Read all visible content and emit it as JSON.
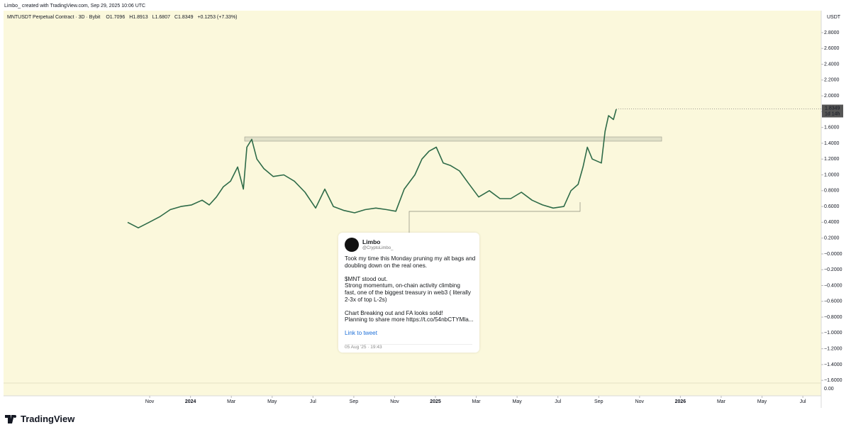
{
  "header": {
    "credit": "Limbo_ created with TradingView.com, Sep 29, 2025 10:06 UTC"
  },
  "chart_data": {
    "type": "line",
    "title": "MNTUSDT Perpetual Contract · 3D · Bybit",
    "ohlc": [
      "O1.7096",
      "H1.8913",
      "L1.6807",
      "C1.8349",
      "+0.1253 (+7.33%)"
    ],
    "y_axis_unit": "USDT",
    "last_price": 1.8349,
    "countdown": "1d 14h",
    "volume_pane_label": "0.00",
    "xlim": [
      2.84,
      42.9
    ],
    "ylim": [
      -1.634,
      3.078
    ],
    "xticks": [
      {
        "value": 10,
        "label": "Nov"
      },
      {
        "value": 12,
        "label": "2024"
      },
      {
        "value": 14,
        "label": "Mar"
      },
      {
        "value": 16,
        "label": "May"
      },
      {
        "value": 18,
        "label": "Jul"
      },
      {
        "value": 20,
        "label": "Sep"
      },
      {
        "value": 22,
        "label": "Nov"
      },
      {
        "value": 24,
        "label": "2025"
      },
      {
        "value": 26,
        "label": "Mar"
      },
      {
        "value": 28,
        "label": "May"
      },
      {
        "value": 30,
        "label": "Jul"
      },
      {
        "value": 32,
        "label": "Sep"
      },
      {
        "value": 34,
        "label": "Nov"
      },
      {
        "value": 36,
        "label": "2026"
      },
      {
        "value": 38,
        "label": "Mar"
      },
      {
        "value": 40,
        "label": "May"
      },
      {
        "value": 42,
        "label": "Jul"
      }
    ],
    "yticks": [
      {
        "value": 2.8,
        "label": "2.8000"
      },
      {
        "value": 2.6,
        "label": "2.6000"
      },
      {
        "value": 2.4,
        "label": "2.4000"
      },
      {
        "value": 2.2,
        "label": "2.2000"
      },
      {
        "value": 2.0,
        "label": "2.0000"
      },
      {
        "value": 1.8,
        "label": "1.8000"
      },
      {
        "value": 1.6,
        "label": "1.6000"
      },
      {
        "value": 1.4,
        "label": "1.4000"
      },
      {
        "value": 1.2,
        "label": "1.2000"
      },
      {
        "value": 1.0,
        "label": "1.0000"
      },
      {
        "value": 0.8,
        "label": "0.8000"
      },
      {
        "value": 0.6,
        "label": "0.6000"
      },
      {
        "value": 0.4,
        "label": "0.4000"
      },
      {
        "value": 0.2,
        "label": "0.2000"
      },
      {
        "value": 0,
        "label": "−0.0000"
      },
      {
        "value": -0.2,
        "label": "−0.2000"
      },
      {
        "value": -0.4,
        "label": "−0.4000"
      },
      {
        "value": -0.6,
        "label": "−0.6000"
      },
      {
        "value": -0.8,
        "label": "−0.8000"
      },
      {
        "value": -1.0,
        "label": "−1.0000"
      },
      {
        "value": -1.2,
        "label": "−1.2000"
      },
      {
        "value": -1.4,
        "label": "−1.4000"
      },
      {
        "value": -1.6,
        "label": "−1.6000"
      }
    ],
    "x": [
      8.92,
      9.44,
      9.97,
      10.49,
      11.01,
      11.53,
      12.05,
      12.57,
      12.92,
      13.27,
      13.61,
      13.96,
      14.31,
      14.59,
      14.76,
      15.0,
      15.25,
      15.59,
      16.05,
      16.57,
      17.09,
      17.61,
      18.13,
      18.58,
      19.0,
      19.52,
      20.04,
      20.56,
      21.08,
      21.61,
      22.06,
      22.47,
      22.99,
      23.34,
      23.69,
      24.04,
      24.38,
      24.73,
      25.18,
      25.6,
      26.12,
      26.64,
      27.16,
      27.69,
      28.21,
      28.73,
      29.25,
      29.77,
      30.29,
      30.64,
      30.99,
      31.23,
      31.44,
      31.68,
      32.13,
      32.31,
      32.48,
      32.72,
      32.86
    ],
    "series": [
      {
        "name": "MNTUSDT",
        "color": "#2e6b48",
        "values": [
          0.4,
          0.33,
          0.4,
          0.47,
          0.56,
          0.6,
          0.62,
          0.68,
          0.62,
          0.72,
          0.85,
          0.92,
          1.1,
          0.82,
          1.35,
          1.45,
          1.2,
          1.08,
          0.98,
          1.0,
          0.92,
          0.78,
          0.58,
          0.82,
          0.6,
          0.55,
          0.52,
          0.56,
          0.58,
          0.56,
          0.54,
          0.82,
          1.0,
          1.2,
          1.3,
          1.35,
          1.15,
          1.12,
          1.05,
          0.9,
          0.72,
          0.8,
          0.7,
          0.7,
          0.78,
          0.68,
          0.62,
          0.58,
          0.6,
          0.8,
          0.88,
          1.1,
          1.35,
          1.2,
          1.15,
          1.55,
          1.75,
          1.7,
          1.83
        ]
      }
    ]
  },
  "tweet": {
    "name": "Limbo",
    "handle": "@CryptoLimbo_",
    "paragraphs": [
      [
        "Took my time this Monday pruning my alt bags and",
        "doubling down on the real ones."
      ],
      [
        "$MNT stood out.",
        "Strong momentum, on-chain activity climbing",
        "fast, one of the biggest treasury in web3 ( literally",
        "2-3x of top L-2s)"
      ],
      [
        "Chart Breaking out and FA looks solid!",
        "Planning to share more https://t.co/54nbCTYMla..."
      ]
    ],
    "link": "Link to tweet",
    "date": "05 Aug '25 · 19:43"
  },
  "footer": {
    "brand": "TradingView"
  }
}
